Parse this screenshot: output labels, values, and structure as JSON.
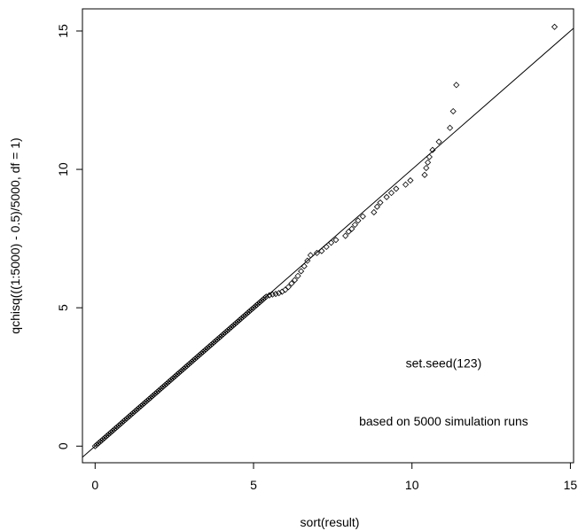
{
  "chart_data": {
    "type": "scatter",
    "title": "",
    "xlabel": "sort(result)",
    "ylabel": "qchisq(((1:5000) - 0.5)/5000, df = 1)",
    "xlim": [
      -0.4,
      15.1
    ],
    "ylim": [
      -0.6,
      15.8
    ],
    "x_ticks": [
      0,
      5,
      10,
      15
    ],
    "y_ticks": [
      0,
      5,
      10,
      15
    ],
    "x_tick_labels": [
      "0",
      "5",
      "10",
      "15"
    ],
    "y_tick_labels": [
      "0",
      "5",
      "10",
      "15"
    ],
    "grid": false,
    "legend": "none",
    "point_shape": "diamond",
    "colors": {
      "points": "#000000",
      "line": "#000000",
      "frame": "#000000"
    },
    "reference_line": {
      "slope": 1,
      "intercept": 0
    },
    "annotations": [
      {
        "text": "set.seed(123)",
        "x": 11.0,
        "y": 3.0
      },
      {
        "text": "based on 5000 simulation runs",
        "x": 11.0,
        "y": 0.9
      }
    ],
    "points": [
      [
        0.0,
        0.0
      ],
      [
        0.05,
        0.05
      ],
      [
        0.1,
        0.1
      ],
      [
        0.15,
        0.15
      ],
      [
        0.2,
        0.2
      ],
      [
        0.25,
        0.25
      ],
      [
        0.3,
        0.3
      ],
      [
        0.35,
        0.35
      ],
      [
        0.4,
        0.4
      ],
      [
        0.45,
        0.45
      ],
      [
        0.5,
        0.5
      ],
      [
        0.55,
        0.55
      ],
      [
        0.6,
        0.6
      ],
      [
        0.65,
        0.65
      ],
      [
        0.7,
        0.7
      ],
      [
        0.75,
        0.75
      ],
      [
        0.8,
        0.8
      ],
      [
        0.85,
        0.85
      ],
      [
        0.9,
        0.9
      ],
      [
        0.95,
        0.95
      ],
      [
        1.0,
        1.0
      ],
      [
        1.05,
        1.05
      ],
      [
        1.1,
        1.1
      ],
      [
        1.15,
        1.15
      ],
      [
        1.2,
        1.2
      ],
      [
        1.25,
        1.25
      ],
      [
        1.3,
        1.3
      ],
      [
        1.35,
        1.35
      ],
      [
        1.4,
        1.4
      ],
      [
        1.45,
        1.45
      ],
      [
        1.5,
        1.5
      ],
      [
        1.55,
        1.55
      ],
      [
        1.6,
        1.6
      ],
      [
        1.65,
        1.65
      ],
      [
        1.7,
        1.7
      ],
      [
        1.75,
        1.75
      ],
      [
        1.8,
        1.8
      ],
      [
        1.85,
        1.85
      ],
      [
        1.9,
        1.9
      ],
      [
        1.95,
        1.95
      ],
      [
        2.0,
        2.0
      ],
      [
        2.05,
        2.05
      ],
      [
        2.1,
        2.1
      ],
      [
        2.15,
        2.15
      ],
      [
        2.2,
        2.2
      ],
      [
        2.25,
        2.25
      ],
      [
        2.3,
        2.3
      ],
      [
        2.35,
        2.35
      ],
      [
        2.4,
        2.4
      ],
      [
        2.45,
        2.45
      ],
      [
        2.5,
        2.5
      ],
      [
        2.55,
        2.55
      ],
      [
        2.6,
        2.6
      ],
      [
        2.65,
        2.65
      ],
      [
        2.7,
        2.7
      ],
      [
        2.75,
        2.75
      ],
      [
        2.8,
        2.8
      ],
      [
        2.85,
        2.85
      ],
      [
        2.9,
        2.9
      ],
      [
        2.95,
        2.95
      ],
      [
        3.0,
        3.0
      ],
      [
        3.05,
        3.05
      ],
      [
        3.1,
        3.1
      ],
      [
        3.15,
        3.15
      ],
      [
        3.2,
        3.2
      ],
      [
        3.25,
        3.25
      ],
      [
        3.3,
        3.3
      ],
      [
        3.35,
        3.35
      ],
      [
        3.4,
        3.4
      ],
      [
        3.45,
        3.45
      ],
      [
        3.5,
        3.5
      ],
      [
        3.55,
        3.55
      ],
      [
        3.6,
        3.6
      ],
      [
        3.65,
        3.65
      ],
      [
        3.7,
        3.7
      ],
      [
        3.75,
        3.75
      ],
      [
        3.8,
        3.8
      ],
      [
        3.85,
        3.85
      ],
      [
        3.9,
        3.9
      ],
      [
        3.95,
        3.95
      ],
      [
        4.0,
        4.0
      ],
      [
        4.05,
        4.05
      ],
      [
        4.1,
        4.1
      ],
      [
        4.15,
        4.15
      ],
      [
        4.2,
        4.2
      ],
      [
        4.25,
        4.25
      ],
      [
        4.3,
        4.3
      ],
      [
        4.35,
        4.35
      ],
      [
        4.4,
        4.4
      ],
      [
        4.45,
        4.45
      ],
      [
        4.5,
        4.5
      ],
      [
        4.55,
        4.55
      ],
      [
        4.6,
        4.6
      ],
      [
        4.65,
        4.65
      ],
      [
        4.7,
        4.7
      ],
      [
        4.75,
        4.75
      ],
      [
        4.8,
        4.8
      ],
      [
        4.85,
        4.85
      ],
      [
        4.9,
        4.9
      ],
      [
        4.95,
        4.95
      ],
      [
        5.0,
        5.0
      ],
      [
        5.05,
        5.05
      ],
      [
        5.1,
        5.1
      ],
      [
        5.15,
        5.15
      ],
      [
        5.2,
        5.2
      ],
      [
        5.25,
        5.25
      ],
      [
        5.3,
        5.3
      ],
      [
        5.35,
        5.35
      ],
      [
        5.4,
        5.4
      ],
      [
        5.5,
        5.45
      ],
      [
        5.6,
        5.48
      ],
      [
        5.7,
        5.5
      ],
      [
        5.8,
        5.53
      ],
      [
        5.9,
        5.58
      ],
      [
        6.0,
        5.65
      ],
      [
        6.1,
        5.75
      ],
      [
        6.2,
        5.88
      ],
      [
        6.3,
        6.0
      ],
      [
        6.4,
        6.15
      ],
      [
        6.5,
        6.32
      ],
      [
        6.6,
        6.5
      ],
      [
        6.7,
        6.7
      ],
      [
        6.8,
        6.9
      ],
      [
        7.0,
        6.98
      ],
      [
        7.15,
        7.05
      ],
      [
        7.3,
        7.2
      ],
      [
        7.45,
        7.35
      ],
      [
        7.6,
        7.45
      ],
      [
        7.9,
        7.6
      ],
      [
        8.0,
        7.75
      ],
      [
        8.1,
        7.85
      ],
      [
        8.2,
        8.0
      ],
      [
        8.3,
        8.15
      ],
      [
        8.45,
        8.3
      ],
      [
        8.8,
        8.45
      ],
      [
        8.9,
        8.65
      ],
      [
        9.0,
        8.8
      ],
      [
        9.2,
        9.0
      ],
      [
        9.35,
        9.15
      ],
      [
        9.5,
        9.3
      ],
      [
        9.8,
        9.45
      ],
      [
        9.95,
        9.6
      ],
      [
        10.4,
        9.8
      ],
      [
        10.45,
        10.05
      ],
      [
        10.5,
        10.25
      ],
      [
        10.55,
        10.45
      ],
      [
        10.65,
        10.7
      ],
      [
        10.85,
        11.0
      ],
      [
        11.2,
        11.5
      ],
      [
        11.3,
        12.1
      ],
      [
        11.4,
        13.05
      ],
      [
        14.5,
        15.15
      ]
    ]
  }
}
